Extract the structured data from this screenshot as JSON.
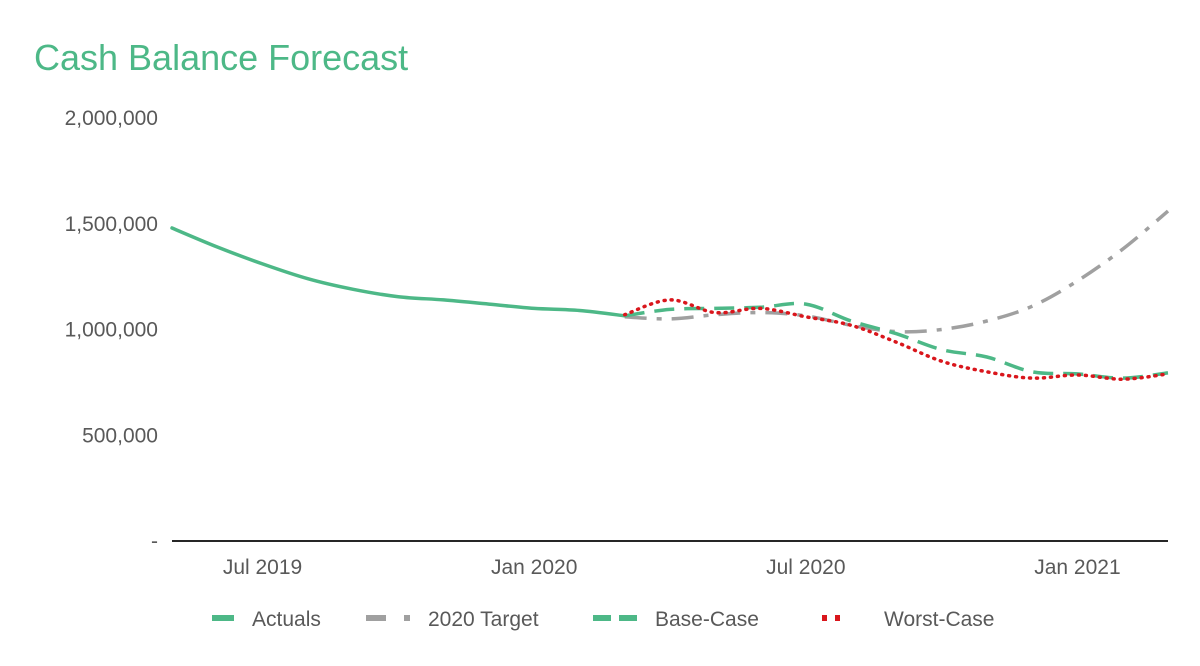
{
  "chart_data": {
    "type": "line",
    "title": "Cash Balance Forecast",
    "xlabel": "",
    "ylabel": "",
    "ylim": [
      0,
      2000000
    ],
    "yticks": [
      0,
      500000,
      1000000,
      1500000,
      2000000
    ],
    "ytick_labels": [
      "-",
      "500,000",
      "1,000,000",
      "1,500,000",
      "2,000,000"
    ],
    "xlim": [
      "2019-05",
      "2021-03"
    ],
    "xticks": [
      "2019-07",
      "2020-01",
      "2020-07",
      "2021-01"
    ],
    "xtick_labels": [
      "Jul 2019",
      "Jan 2020",
      "Jul 2020",
      "Jan 2021"
    ],
    "grid": false,
    "legend": "bottom",
    "colors": {
      "title": "#4DB887",
      "actuals": "#4DB887",
      "target": "#A0A0A0",
      "base": "#4DB887",
      "worst": "#D9161C",
      "axis": "#262626",
      "tick": "#595959"
    },
    "series": [
      {
        "name": "Actuals",
        "key": "actuals",
        "style": "solid",
        "points": [
          [
            "2019-05",
            1480000
          ],
          [
            "2019-06",
            1390000
          ],
          [
            "2019-07",
            1310000
          ],
          [
            "2019-08",
            1240000
          ],
          [
            "2019-09",
            1190000
          ],
          [
            "2019-10",
            1155000
          ],
          [
            "2019-11",
            1140000
          ],
          [
            "2019-12",
            1120000
          ],
          [
            "2020-01",
            1100000
          ],
          [
            "2020-02",
            1090000
          ],
          [
            "2020-03",
            1065000
          ]
        ]
      },
      {
        "name": "2020 Target",
        "key": "target",
        "style": "dashdot",
        "points": [
          [
            "2020-03",
            1060000
          ],
          [
            "2020-04",
            1050000
          ],
          [
            "2020-05",
            1070000
          ],
          [
            "2020-06",
            1080000
          ],
          [
            "2020-07",
            1065000
          ],
          [
            "2020-08",
            1020000
          ],
          [
            "2020-09",
            990000
          ],
          [
            "2020-10",
            1000000
          ],
          [
            "2020-11",
            1040000
          ],
          [
            "2020-12",
            1110000
          ],
          [
            "2021-01",
            1230000
          ],
          [
            "2021-02",
            1380000
          ],
          [
            "2021-03",
            1560000
          ]
        ]
      },
      {
        "name": "Base-Case",
        "key": "base",
        "style": "dashed",
        "points": [
          [
            "2020-03",
            1065000
          ],
          [
            "2020-04",
            1095000
          ],
          [
            "2020-05",
            1100000
          ],
          [
            "2020-06",
            1105000
          ],
          [
            "2020-07",
            1120000
          ],
          [
            "2020-08",
            1040000
          ],
          [
            "2020-09",
            980000
          ],
          [
            "2020-10",
            905000
          ],
          [
            "2020-11",
            870000
          ],
          [
            "2020-12",
            800000
          ],
          [
            "2021-01",
            790000
          ],
          [
            "2021-02",
            770000
          ],
          [
            "2021-03",
            795000
          ]
        ]
      },
      {
        "name": "Worst-Case",
        "key": "worst",
        "style": "dotted",
        "points": [
          [
            "2020-03",
            1070000
          ],
          [
            "2020-04",
            1140000
          ],
          [
            "2020-05",
            1080000
          ],
          [
            "2020-06",
            1100000
          ],
          [
            "2020-07",
            1060000
          ],
          [
            "2020-08",
            1020000
          ],
          [
            "2020-09",
            940000
          ],
          [
            "2020-10",
            850000
          ],
          [
            "2020-11",
            800000
          ],
          [
            "2020-12",
            770000
          ],
          [
            "2021-01",
            785000
          ],
          [
            "2021-02",
            765000
          ],
          [
            "2021-03",
            790000
          ]
        ]
      }
    ]
  }
}
